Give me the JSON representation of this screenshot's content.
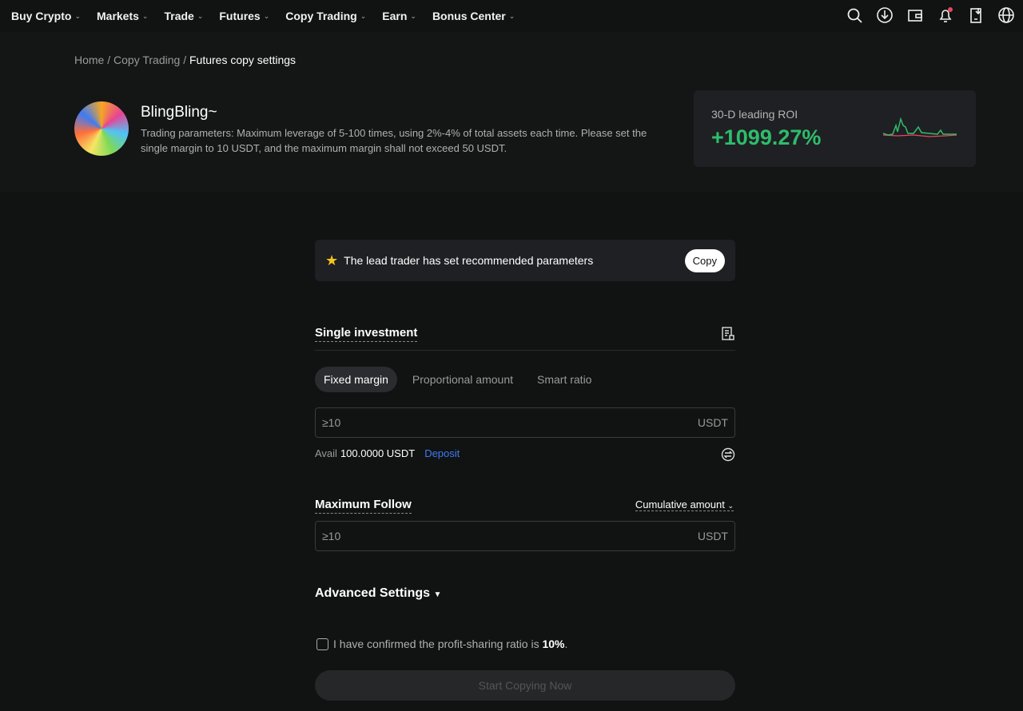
{
  "nav": {
    "items": [
      "Buy Crypto",
      "Markets",
      "Trade",
      "Futures",
      "Copy Trading",
      "Earn",
      "Bonus Center"
    ],
    "icons": [
      "search-icon",
      "download-icon",
      "wallet-icon",
      "bell-icon",
      "mobile-download-icon",
      "globe-icon"
    ]
  },
  "breadcrumb": {
    "home": "Home",
    "copy_trading": "Copy Trading",
    "current": "Futures copy settings"
  },
  "trader": {
    "name": "BlingBling~",
    "description": "Trading parameters: Maximum leverage of 5-100 times, using 2%-4% of total assets each time. Please set the single margin to 10 USDT, and the maximum margin shall not exceed 50 USDT."
  },
  "roi": {
    "label": "30-D leading ROI",
    "value": "+1099.27%",
    "color": "#2ebd6b"
  },
  "banner": {
    "text": "The lead trader has set recommended parameters",
    "copy_label": "Copy"
  },
  "single": {
    "title": "Single investment",
    "tabs": [
      "Fixed margin",
      "Proportional amount",
      "Smart ratio"
    ],
    "active_tab": "Fixed margin",
    "placeholder": "≥10",
    "unit": "USDT",
    "avail_label": "Avail",
    "avail_value": "100.0000 USDT",
    "deposit": "Deposit"
  },
  "max_follow": {
    "title": "Maximum Follow",
    "mode": "Cumulative amount",
    "placeholder": "≥10",
    "unit": "USDT"
  },
  "advanced": {
    "title": "Advanced Settings"
  },
  "confirm": {
    "text": "I have confirmed the profit-sharing ratio is ",
    "ratio": "10%",
    "end": "."
  },
  "start_button": "Start Copying Now",
  "colors": {
    "accent": "#3d7bf5",
    "positive": "#2ebd6b",
    "notification": "#e8475f"
  }
}
